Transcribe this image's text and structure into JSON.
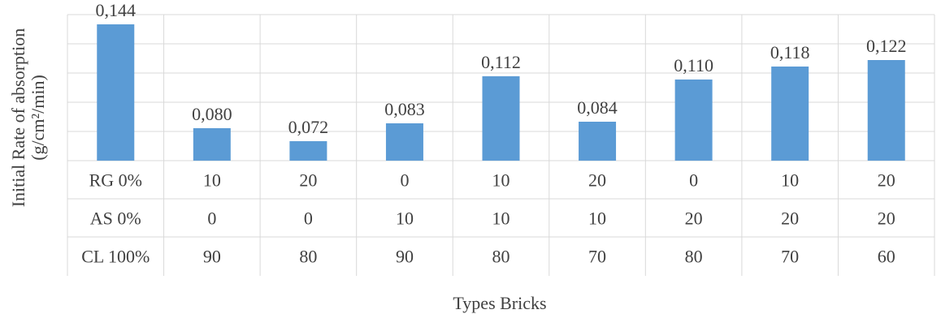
{
  "chart_data": {
    "type": "bar",
    "ylabel": [
      "Initial Rate of absorption",
      "(g/cm²/min)"
    ],
    "xlabel": "Types Bricks",
    "ylim": [
      0.06,
      0.15
    ],
    "grid": true,
    "bar_color": "#5b9bd5",
    "categories": [
      "RG 0% / AS 0% / CL 100%",
      "10/0/90",
      "20/0/80",
      "0/10/90",
      "10/10/80",
      "20/10/70",
      "0/20/80",
      "10/20/70",
      "20/20/60"
    ],
    "values": [
      0.144,
      0.08,
      0.072,
      0.083,
      0.112,
      0.084,
      0.11,
      0.118,
      0.122
    ],
    "value_labels": [
      "0,144",
      "0,080",
      "0,072",
      "0,083",
      "0,112",
      "0,084",
      "0,110",
      "0,118",
      "0,122"
    ],
    "table_rows": [
      {
        "label": "RG 0%",
        "cells": [
          "10",
          "20",
          "0",
          "10",
          "20",
          "0",
          "10",
          "20"
        ]
      },
      {
        "label": "AS 0%",
        "cells": [
          "0",
          "0",
          "10",
          "10",
          "10",
          "20",
          "20",
          "20"
        ]
      },
      {
        "label": "CL 100%",
        "cells": [
          "90",
          "80",
          "90",
          "80",
          "70",
          "80",
          "70",
          "60"
        ]
      }
    ]
  }
}
